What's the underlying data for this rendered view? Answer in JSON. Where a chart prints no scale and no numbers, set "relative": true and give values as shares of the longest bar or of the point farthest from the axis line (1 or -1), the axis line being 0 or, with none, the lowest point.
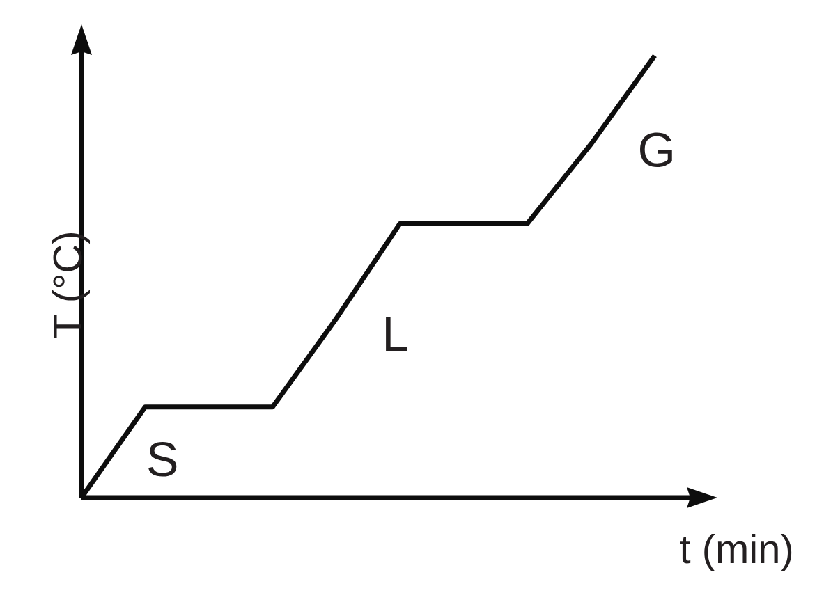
{
  "chart_data": {
    "type": "line",
    "xlabel": "t (min)",
    "ylabel": "T (°C)",
    "categories": [
      null,
      null,
      null,
      null,
      null,
      null,
      null,
      null,
      null,
      null
    ],
    "values": [
      0,
      0.205,
      0.205,
      0.205,
      0.405,
      0.62,
      0.62,
      0.62,
      0.8,
      1
    ],
    "color": "#0d0d0d",
    "relative": true,
    "annotations": [
      "S",
      "L",
      "G"
    ]
  }
}
